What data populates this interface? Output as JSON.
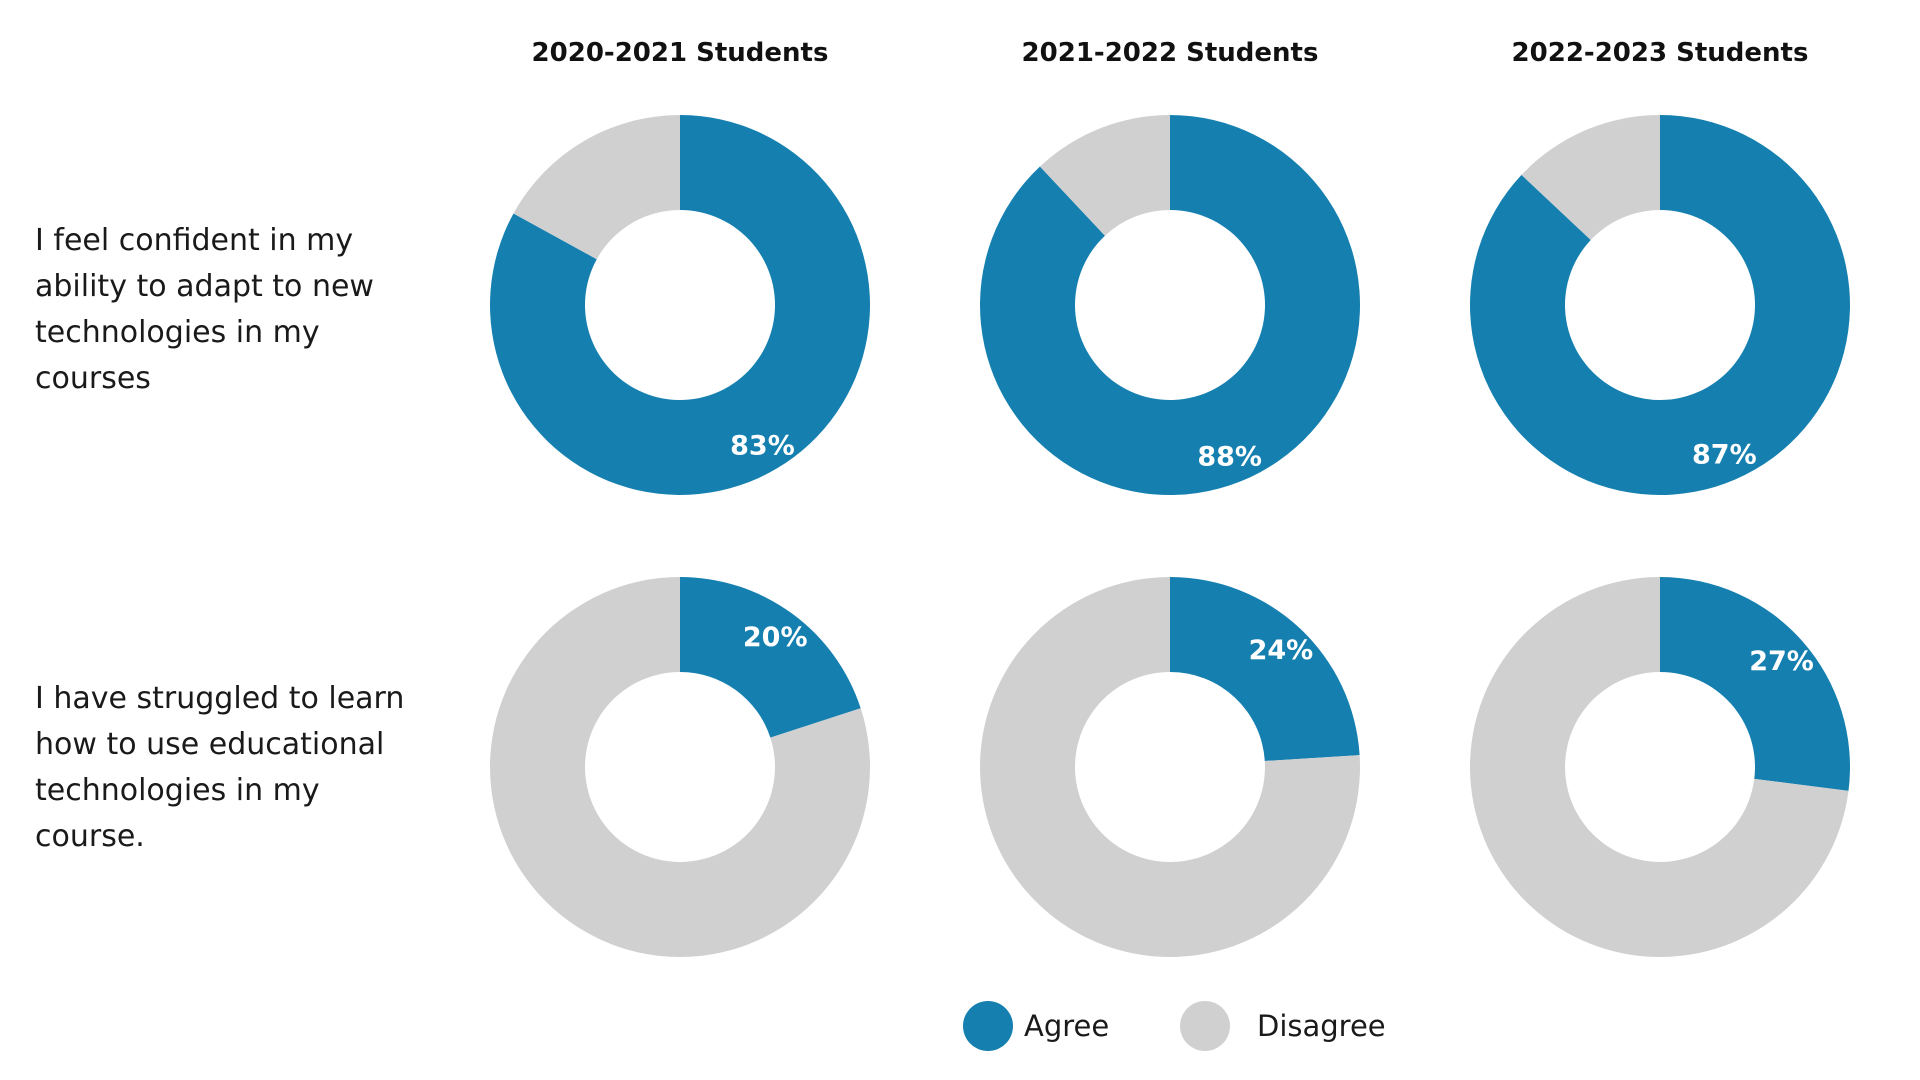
{
  "chart_data": {
    "type": "pie",
    "variant": "donut",
    "columns": [
      "2020-2021 Students",
      "2021-2022 Students",
      "2022-2023 Students"
    ],
    "rows": [
      {
        "label": "I feel confident in my ability to adapt to new technologies in my courses",
        "label_lines": [
          "I feel confident in my",
          "ability to adapt to new",
          "technologies in my",
          "courses"
        ],
        "values": [
          {
            "agree": 83,
            "disagree": 17,
            "label": "83%"
          },
          {
            "agree": 88,
            "disagree": 12,
            "label": "88%"
          },
          {
            "agree": 87,
            "disagree": 13,
            "label": "87%"
          }
        ]
      },
      {
        "label": "I have struggled to learn how to use educational technologies in my course.",
        "label_lines": [
          "I have struggled to learn",
          "how to use educational",
          "technologies in my",
          "course."
        ],
        "values": [
          {
            "agree": 20,
            "disagree": 80,
            "label": "20%"
          },
          {
            "agree": 24,
            "disagree": 76,
            "label": "24%"
          },
          {
            "agree": 27,
            "disagree": 73,
            "label": "27%"
          }
        ]
      }
    ],
    "series": [
      {
        "name": "Agree",
        "color": "#1580b0"
      },
      {
        "name": "Disagree",
        "color": "#d0d0d0"
      }
    ],
    "legend": [
      "Agree",
      "Disagree"
    ],
    "legend_position": "bottom-center"
  }
}
